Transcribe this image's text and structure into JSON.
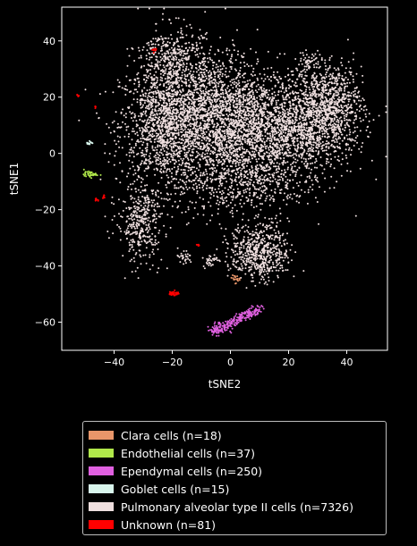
{
  "chart_data": {
    "type": "scatter",
    "title": "",
    "xlabel": "tSNE2",
    "ylabel": "tSNE1",
    "xlim": [
      -58,
      54
    ],
    "ylim": [
      -70,
      52
    ],
    "xticks": [
      -40,
      -20,
      0,
      20,
      40
    ],
    "yticks": [
      -60,
      -40,
      -20,
      0,
      20,
      40
    ],
    "grid": false,
    "legend_position": "below",
    "series": [
      {
        "name": "Clara cells (n=18)",
        "color": "#e9966a",
        "count": 18,
        "clusters": [
          {
            "cx": 1.5,
            "cy": -44.5,
            "sx": 0.8,
            "sy": 0.8,
            "n": 18
          }
        ]
      },
      {
        "name": "Endothelial cells (n=37)",
        "color": "#b0e84a",
        "count": 37,
        "clusters": [
          {
            "cx": -48,
            "cy": -7.5,
            "sx": 1.2,
            "sy": 0.5,
            "n": 37
          }
        ]
      },
      {
        "name": "Ependymal cells (n=250)",
        "color": "#e060e0",
        "count": 250,
        "clusters": [
          {
            "line": [
              [
                -6,
                -63.5
              ],
              [
                10,
                -55
              ]
            ],
            "spread": 1.2,
            "n": 230
          },
          {
            "cx": -4,
            "cy": -62,
            "sx": 1.2,
            "sy": 1.2,
            "n": 20
          }
        ]
      },
      {
        "name": "Goblet cells (n=15)",
        "color": "#d8f5ec",
        "count": 15,
        "clusters": [
          {
            "cx": -48.5,
            "cy": 3.7,
            "sx": 0.6,
            "sy": 0.4,
            "n": 15
          }
        ]
      },
      {
        "name": "Pulmonary alveolar type II cells (n=7326)",
        "color": "#eedede",
        "count": 7326,
        "clusters": [
          {
            "cx": -22,
            "cy": 10,
            "sx": 8,
            "sy": 11,
            "n": 1400
          },
          {
            "cx": -5,
            "cy": 14,
            "sx": 9,
            "sy": 11,
            "n": 1500
          },
          {
            "cx": 15,
            "cy": 8,
            "sx": 11,
            "sy": 10,
            "n": 1600
          },
          {
            "cx": 32,
            "cy": 14,
            "sx": 7,
            "sy": 8,
            "n": 900
          },
          {
            "cx": -20,
            "cy": 34,
            "sx": 5,
            "sy": 6,
            "n": 350
          },
          {
            "cx": -31,
            "cy": -25,
            "sx": 4,
            "sy": 7,
            "n": 350
          },
          {
            "cx": 10,
            "cy": -35,
            "sx": 5,
            "sy": 5,
            "n": 550
          },
          {
            "cx": 2,
            "cy": -10,
            "sx": 10,
            "sy": 7,
            "n": 450
          },
          {
            "cx": 27,
            "cy": 33,
            "sx": 2,
            "sy": 1.5,
            "n": 40
          },
          {
            "cx": -16,
            "cy": -37,
            "sx": 1.5,
            "sy": 1.5,
            "n": 30
          },
          {
            "cx": -7,
            "cy": -38,
            "sx": 1.2,
            "sy": 1.2,
            "n": 30
          },
          {
            "cx": 36,
            "cy": 22,
            "sx": 4,
            "sy": 5,
            "n": 126
          }
        ]
      },
      {
        "name": "Unknown (n=81)",
        "color": "#ff0000",
        "count": 81,
        "clusters": [
          {
            "cx": -19.5,
            "cy": -49.7,
            "sx": 0.8,
            "sy": 0.4,
            "n": 40
          },
          {
            "cx": -52.5,
            "cy": 20.5,
            "sx": 0.3,
            "sy": 0.3,
            "n": 6
          },
          {
            "cx": -46.5,
            "cy": 16.5,
            "sx": 0.3,
            "sy": 0.3,
            "n": 5
          },
          {
            "cx": -46,
            "cy": -16.5,
            "sx": 0.4,
            "sy": 0.3,
            "n": 8
          },
          {
            "cx": -43.5,
            "cy": -15.5,
            "sx": 0.3,
            "sy": 0.3,
            "n": 6
          },
          {
            "cx": -11,
            "cy": -32.5,
            "sx": 0.3,
            "sy": 0.3,
            "n": 6
          },
          {
            "cx": -26,
            "cy": 36.5,
            "sx": 0.3,
            "sy": 0.3,
            "n": 10
          }
        ]
      }
    ]
  }
}
